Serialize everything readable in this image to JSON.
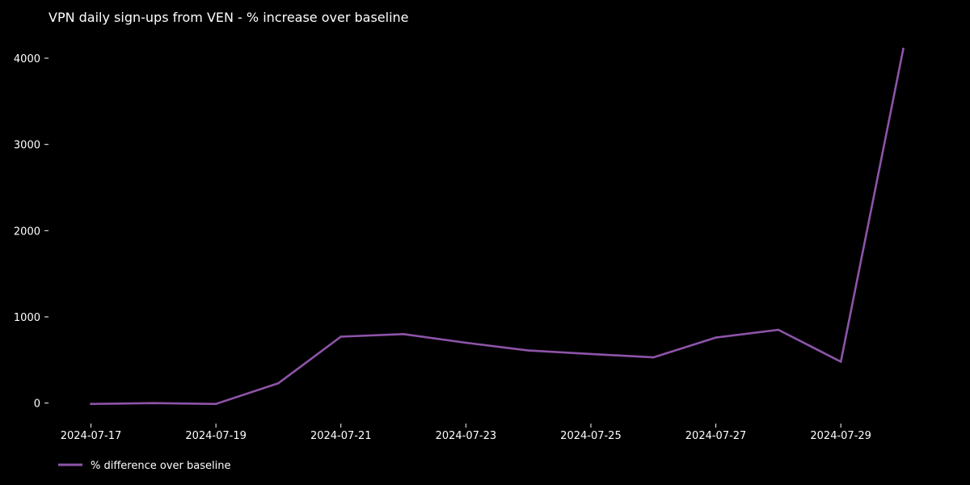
{
  "chart_data": {
    "type": "line",
    "title": "VPN daily sign-ups from VEN - % increase over baseline",
    "xlabel": "",
    "ylabel": "",
    "x": [
      "2024-07-17",
      "2024-07-18",
      "2024-07-19",
      "2024-07-20",
      "2024-07-21",
      "2024-07-22",
      "2024-07-23",
      "2024-07-24",
      "2024-07-25",
      "2024-07-26",
      "2024-07-27",
      "2024-07-28",
      "2024-07-29",
      "2024-07-30"
    ],
    "series": [
      {
        "name": "% difference over baseline",
        "color": "#8e54a9",
        "values": [
          -10,
          0,
          -10,
          230,
          770,
          800,
          700,
          610,
          570,
          530,
          760,
          850,
          480,
          4110
        ]
      }
    ],
    "x_ticks": [
      "2024-07-17",
      "2024-07-19",
      "2024-07-21",
      "2024-07-23",
      "2024-07-25",
      "2024-07-27",
      "2024-07-29"
    ],
    "y_ticks": [
      0,
      1000,
      2000,
      3000,
      4000
    ],
    "ylim": [
      -200,
      4300
    ],
    "xlim": [
      "2024-07-16.6",
      "2024-07-30.4"
    ],
    "grid": false,
    "legend_position": "bottom-left",
    "background": "#000000",
    "text_color": "#ffffff"
  }
}
